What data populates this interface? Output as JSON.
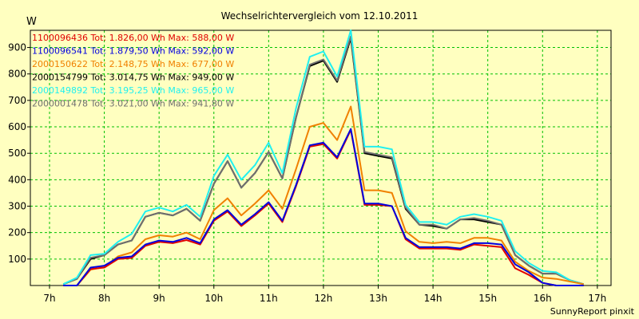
{
  "chart_data": {
    "type": "line",
    "title": "Wechselrichtervergleich vom 12.10.2011",
    "ylabel": "W",
    "xlabel": "",
    "footer": "SunnyReport pinxit",
    "ylim": [
      0,
      965
    ],
    "yticks": [
      100,
      200,
      300,
      400,
      500,
      600,
      700,
      800,
      900
    ],
    "xlim": [
      6.65,
      17.25
    ],
    "xticks": [
      {
        "value": 7,
        "label": "7h"
      },
      {
        "value": 8,
        "label": "8h"
      },
      {
        "value": 9,
        "label": "9h"
      },
      {
        "value": 10,
        "label": "10h"
      },
      {
        "value": 11,
        "label": "11h"
      },
      {
        "value": 12,
        "label": "12h"
      },
      {
        "value": 13,
        "label": "13h"
      },
      {
        "value": 14,
        "label": "14h"
      },
      {
        "value": 15,
        "label": "15h"
      },
      {
        "value": 16,
        "label": "16h"
      },
      {
        "value": 17,
        "label": "17h"
      }
    ],
    "grid": true,
    "legend_position": "top-left",
    "x": [
      7.25,
      7.5,
      7.75,
      8.0,
      8.25,
      8.5,
      8.75,
      9.0,
      9.25,
      9.5,
      9.75,
      10.0,
      10.25,
      10.5,
      10.75,
      11.0,
      11.25,
      11.5,
      11.75,
      12.0,
      12.25,
      12.5,
      12.75,
      13.0,
      13.25,
      13.5,
      13.75,
      14.0,
      14.25,
      14.5,
      14.75,
      15.0,
      15.25,
      15.5,
      15.75,
      16.0,
      16.25,
      16.5,
      16.75
    ],
    "series": [
      {
        "name": "1100096436",
        "legend": "1100096436 Tot: 1.826,00 Wh Max: 588,00 W",
        "color": "#e00000",
        "values": [
          0,
          0,
          62,
          68,
          100,
          104,
          150,
          165,
          160,
          172,
          155,
          245,
          280,
          225,
          265,
          310,
          240,
          375,
          525,
          535,
          480,
          588,
          305,
          305,
          300,
          175,
          140,
          140,
          140,
          135,
          155,
          150,
          145,
          65,
          40,
          10,
          0,
          0,
          0
        ]
      },
      {
        "name": "1100096541",
        "legend": "1100096541 Tot: 1.879,50 Wh Max: 592,00 W",
        "color": "#0000e0",
        "values": [
          0,
          0,
          68,
          75,
          105,
          110,
          155,
          170,
          165,
          180,
          160,
          250,
          285,
          230,
          270,
          315,
          245,
          380,
          530,
          540,
          485,
          592,
          310,
          310,
          300,
          180,
          145,
          145,
          145,
          140,
          160,
          160,
          155,
          80,
          50,
          10,
          0,
          0,
          0
        ]
      },
      {
        "name": "2000150622",
        "legend": "2000150622 Tot: 2.148,75 Wh Max: 677,00 W",
        "color": "#f08000",
        "values": [
          0,
          0,
          60,
          70,
          110,
          125,
          175,
          190,
          185,
          200,
          175,
          285,
          330,
          265,
          310,
          360,
          290,
          440,
          600,
          615,
          550,
          677,
          360,
          360,
          350,
          205,
          165,
          160,
          165,
          160,
          180,
          180,
          170,
          90,
          55,
          30,
          25,
          15,
          5
        ]
      },
      {
        "name": "2000154799",
        "legend": "2000154799 Tot: 3.014,75 Wh Max: 949,00 W",
        "color": "#000000",
        "values": [
          5,
          25,
          100,
          115,
          155,
          170,
          260,
          275,
          265,
          290,
          245,
          385,
          470,
          370,
          425,
          505,
          405,
          635,
          830,
          850,
          770,
          935,
          500,
          490,
          480,
          290,
          230,
          225,
          215,
          250,
          250,
          240,
          230,
          115,
          75,
          45,
          45,
          20,
          5
        ]
      },
      {
        "name": "2000149892",
        "legend": "2000149892 Tot: 3.195,25 Wh Max: 965,00 W",
        "color": "#20f0f0",
        "values": [
          5,
          30,
          115,
          120,
          165,
          195,
          280,
          295,
          280,
          305,
          260,
          415,
          495,
          400,
          455,
          540,
          425,
          670,
          865,
          885,
          790,
          965,
          525,
          525,
          515,
          305,
          240,
          240,
          230,
          260,
          270,
          260,
          245,
          130,
          85,
          55,
          50,
          20,
          5
        ]
      },
      {
        "name": "2000001478",
        "legend": "2000001478 Tot: 3.021,00 Wh Max: 941,80 W",
        "color": "#707070",
        "values": [
          5,
          25,
          105,
          115,
          155,
          170,
          260,
          275,
          265,
          290,
          245,
          385,
          470,
          370,
          425,
          505,
          405,
          635,
          835,
          855,
          775,
          942,
          505,
          495,
          485,
          295,
          230,
          230,
          215,
          250,
          255,
          245,
          230,
          115,
          75,
          45,
          45,
          20,
          5
        ]
      }
    ]
  }
}
